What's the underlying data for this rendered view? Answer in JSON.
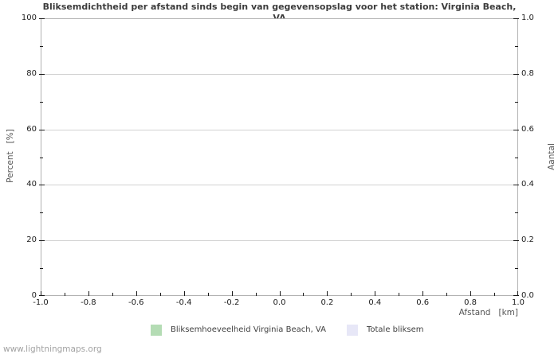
{
  "page": {
    "watermark": "www.lightningmaps.org"
  },
  "chart_data": {
    "type": "line",
    "title": "Bliksemdichtheid per afstand sinds begin van gegevensopslag voor het station: Virginia Beach, VA",
    "xlabel": "Afstand   [km]",
    "ylabel_left": "Percent   [%]",
    "ylabel_right": "Aantal",
    "xlim": [
      -1.0,
      1.0
    ],
    "ylim_left": [
      0,
      100
    ],
    "ylim_right": [
      0.0,
      1.0
    ],
    "x_tick_labels": [
      "-1.0",
      "-0.8",
      "-0.6",
      "-0.4",
      "-0.2",
      "0.0",
      "0.2",
      "0.4",
      "0.6",
      "0.8",
      "1.0"
    ],
    "y_tick_labels_left": [
      "0",
      "20",
      "40",
      "60",
      "80",
      "100"
    ],
    "y_tick_labels_right": [
      "0.0",
      "0.2",
      "0.4",
      "0.6",
      "0.8",
      "1.0"
    ],
    "grid": true,
    "legend_position": "bottom",
    "series": [
      {
        "name": "Bliksemhoeveelheid Virginia Beach, VA",
        "color": "#b4dcb4",
        "values": []
      },
      {
        "name": "Totale bliksem",
        "color": "#e7e7f7",
        "values": []
      }
    ],
    "colors": {
      "grid": "#d2d2d2",
      "border": "#b2b2b2",
      "tick": "#1a1a1a",
      "title_text": "#3c3c3c",
      "axis_text": "#555555"
    }
  }
}
